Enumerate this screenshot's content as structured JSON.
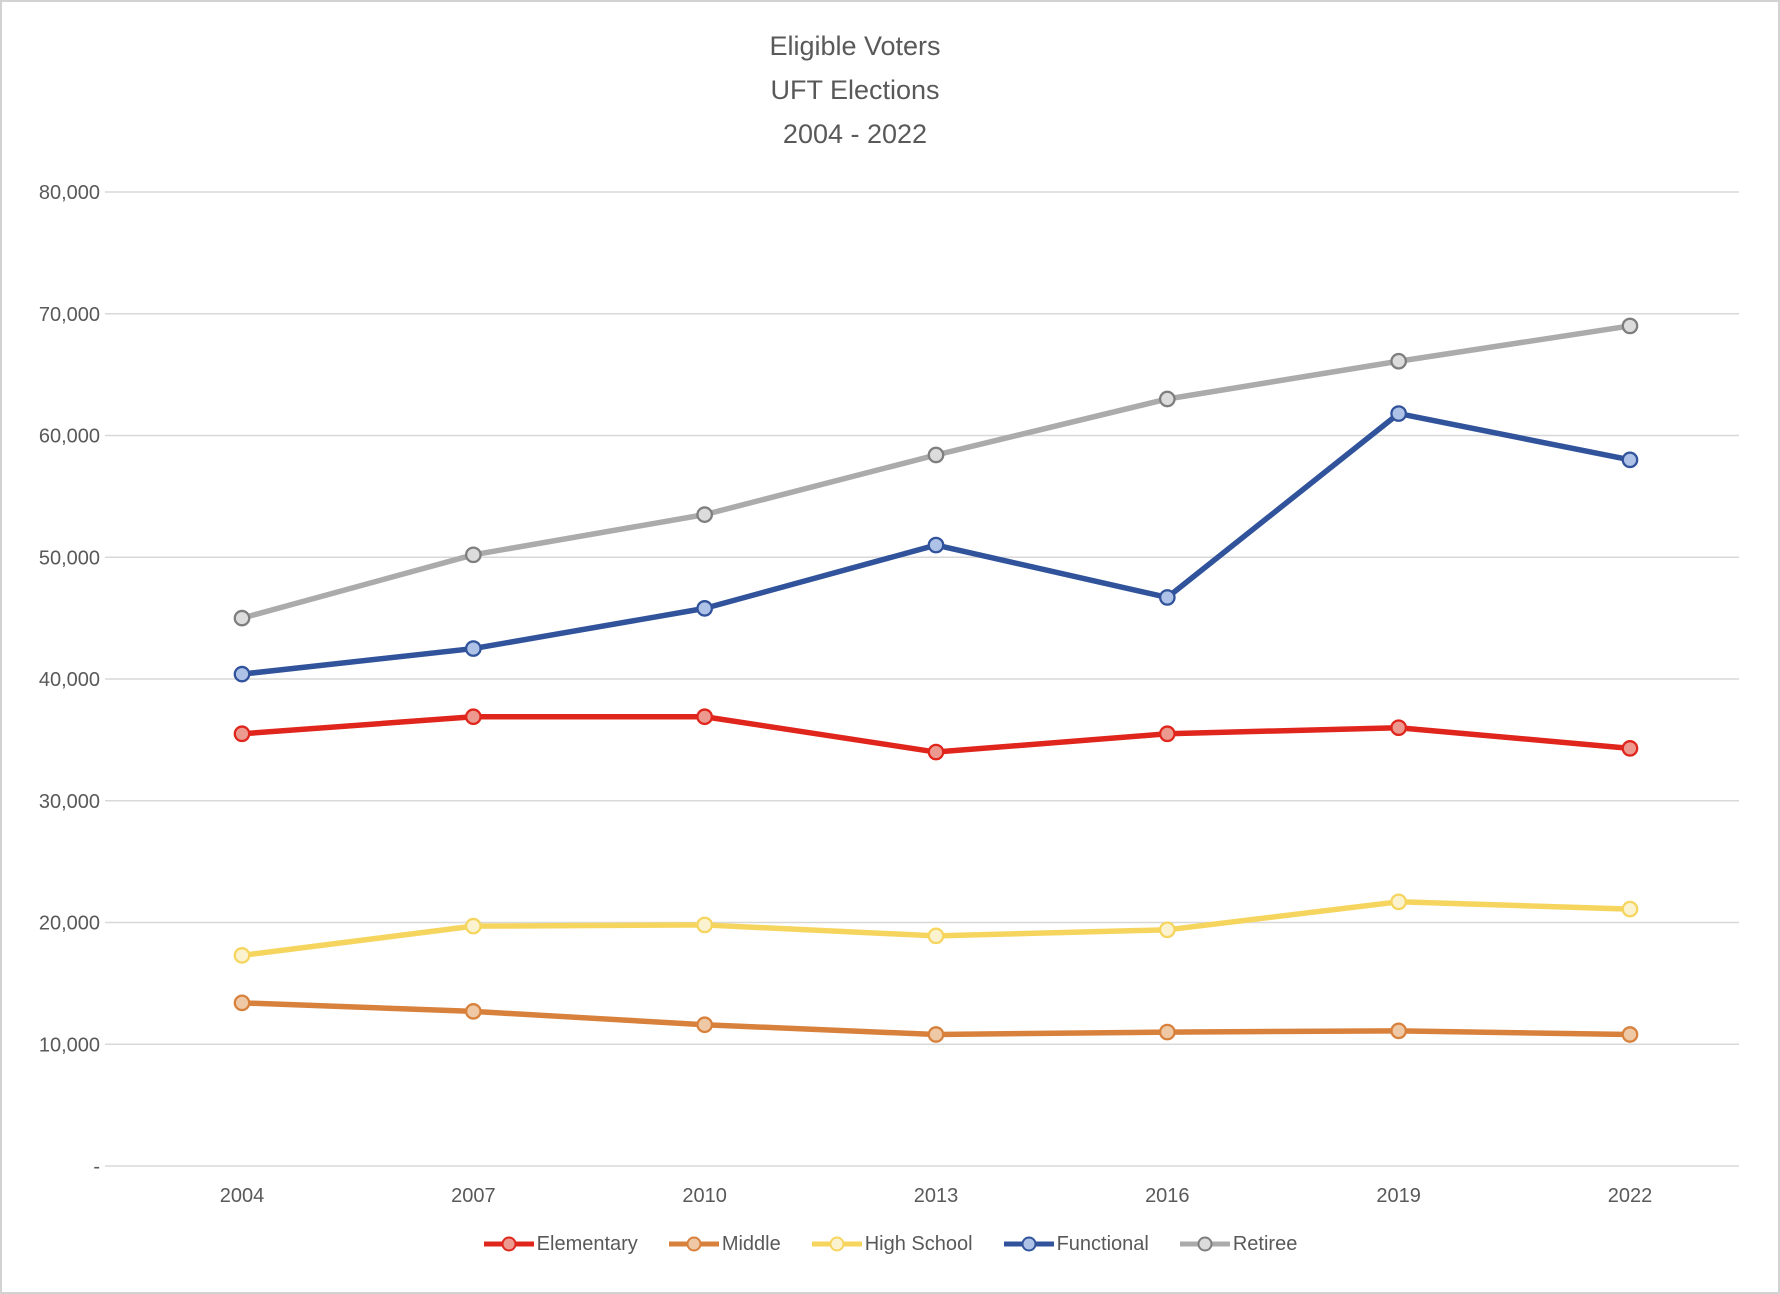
{
  "title": {
    "line1": "Eligible Voters",
    "line2": "UFT Elections",
    "line3": "2004 - 2022"
  },
  "chart_data": {
    "type": "line",
    "title": "Eligible Voters UFT Elections 2004 - 2022",
    "categories": [
      "2004",
      "2007",
      "2010",
      "2013",
      "2016",
      "2019",
      "2022"
    ],
    "series": [
      {
        "name": "Elementary",
        "color": "#e0261c",
        "marker_fill": "#ec9a90",
        "marker_stroke": "#e0261c",
        "values": [
          35500,
          36900,
          36900,
          34000,
          35500,
          36000,
          34300
        ]
      },
      {
        "name": "Middle",
        "color": "#d8813c",
        "marker_fill": "#efc9a6",
        "marker_stroke": "#d8813c",
        "values": [
          13400,
          12700,
          11600,
          10800,
          11000,
          11100,
          10800
        ]
      },
      {
        "name": "High School",
        "color": "#f6d55f",
        "marker_fill": "#fbf2cf",
        "marker_stroke": "#f6d55f",
        "values": [
          17300,
          19700,
          19800,
          18900,
          19400,
          21700,
          21100
        ]
      },
      {
        "name": "Functional",
        "color": "#31539b",
        "marker_fill": "#aec2e8",
        "marker_stroke": "#31539b",
        "values": [
          40400,
          42500,
          45800,
          51000,
          46700,
          61800,
          58000
        ]
      },
      {
        "name": "Retiree",
        "color": "#ababab",
        "marker_fill": "#dcdcdc",
        "marker_stroke": "#7e7e7e",
        "values": [
          45000,
          50200,
          53500,
          58400,
          63000,
          66100,
          69000
        ]
      }
    ],
    "ylim": [
      0,
      80000
    ],
    "ytick_step": 10000,
    "ytick_labels": [
      "-",
      "10,000",
      "20,000",
      "30,000",
      "40,000",
      "50,000",
      "60,000",
      "70,000",
      "80,000"
    ],
    "grid": true,
    "legend_position": "bottom",
    "gridline_color": "#d8d8d8",
    "axis_label_color": "#595959"
  }
}
